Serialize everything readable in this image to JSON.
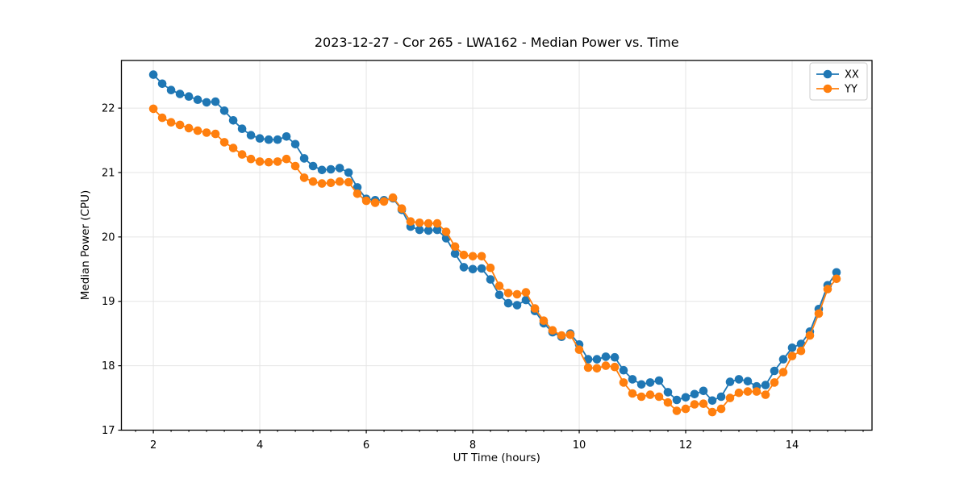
{
  "chart_data": {
    "type": "line",
    "title": "2023-12-27 - Cor 265 - LWA162 - Median Power vs. Time",
    "xlabel": "UT Time (hours)",
    "ylabel": "Median Power (CPU)",
    "xlim": [
      1.4,
      15.5
    ],
    "ylim": [
      17.0,
      22.74
    ],
    "xticks": [
      2,
      4,
      6,
      8,
      10,
      12,
      14
    ],
    "yticks": [
      17,
      18,
      19,
      20,
      21,
      22
    ],
    "x_minor_tick_step": 0.3333,
    "grid": true,
    "grid_color": "#e5e5e5",
    "legend_position": "upper right",
    "marker": "circle",
    "categories_note": "x values are UT hours, 10-minute cadence",
    "x": [
      2.0,
      2.167,
      2.333,
      2.5,
      2.667,
      2.833,
      3.0,
      3.167,
      3.333,
      3.5,
      3.667,
      3.833,
      4.0,
      4.167,
      4.333,
      4.5,
      4.667,
      4.833,
      5.0,
      5.167,
      5.333,
      5.5,
      5.667,
      5.833,
      6.0,
      6.167,
      6.333,
      6.5,
      6.667,
      6.833,
      7.0,
      7.167,
      7.333,
      7.5,
      7.667,
      7.833,
      8.0,
      8.167,
      8.333,
      8.5,
      8.667,
      8.833,
      9.0,
      9.167,
      9.333,
      9.5,
      9.667,
      9.833,
      10.0,
      10.167,
      10.333,
      10.5,
      10.667,
      10.833,
      11.0,
      11.167,
      11.333,
      11.5,
      11.667,
      11.833,
      12.0,
      12.167,
      12.333,
      12.5,
      12.667,
      12.833,
      13.0,
      13.167,
      13.333,
      13.5,
      13.667,
      13.833,
      14.0,
      14.167,
      14.333,
      14.5,
      14.667,
      14.833
    ],
    "series": [
      {
        "name": "XX",
        "color": "#1f77b4",
        "values": [
          22.52,
          22.38,
          22.28,
          22.22,
          22.18,
          22.13,
          22.09,
          22.1,
          21.96,
          21.81,
          21.68,
          21.58,
          21.53,
          21.51,
          21.51,
          21.56,
          21.44,
          21.22,
          21.1,
          21.04,
          21.05,
          21.07,
          21.0,
          20.77,
          20.59,
          20.57,
          20.57,
          20.6,
          20.42,
          20.16,
          20.11,
          20.1,
          20.11,
          19.98,
          19.74,
          19.53,
          19.5,
          19.51,
          19.34,
          19.1,
          18.97,
          18.94,
          19.02,
          18.85,
          18.66,
          18.52,
          18.45,
          18.5,
          18.33,
          18.1,
          18.1,
          18.14,
          18.13,
          17.93,
          17.79,
          17.71,
          17.74,
          17.77,
          17.59,
          17.47,
          17.51,
          17.56,
          17.61,
          17.46,
          17.52,
          17.75,
          17.79,
          17.76,
          17.68,
          17.7,
          17.92,
          18.1,
          18.28,
          18.34,
          18.53,
          18.88,
          19.25,
          19.45
        ]
      },
      {
        "name": "YY",
        "color": "#ff7f0e",
        "values": [
          21.99,
          21.85,
          21.78,
          21.74,
          21.69,
          21.65,
          21.62,
          21.6,
          21.47,
          21.38,
          21.28,
          21.21,
          21.17,
          21.16,
          21.17,
          21.21,
          21.1,
          20.92,
          20.86,
          20.83,
          20.84,
          20.86,
          20.85,
          20.67,
          20.56,
          20.53,
          20.55,
          20.61,
          20.44,
          20.24,
          20.22,
          20.21,
          20.21,
          20.08,
          19.85,
          19.72,
          19.7,
          19.7,
          19.52,
          19.24,
          19.13,
          19.11,
          19.14,
          18.89,
          18.7,
          18.55,
          18.47,
          18.48,
          18.25,
          17.97,
          17.96,
          18.0,
          17.98,
          17.74,
          17.57,
          17.52,
          17.55,
          17.52,
          17.43,
          17.3,
          17.33,
          17.4,
          17.41,
          17.28,
          17.33,
          17.5,
          17.58,
          17.6,
          17.6,
          17.55,
          17.74,
          17.9,
          18.15,
          18.23,
          18.47,
          18.81,
          19.19,
          19.35
        ]
      }
    ]
  },
  "figure": {
    "background": "#ffffff",
    "spine_color": "#000000",
    "text_color": "#000000"
  }
}
